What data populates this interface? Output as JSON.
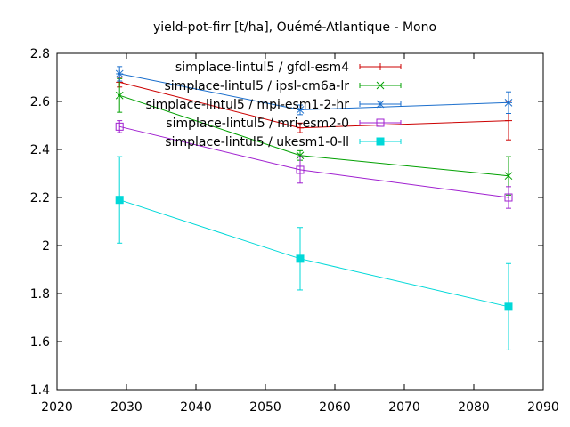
{
  "chart_data": {
    "type": "line",
    "title": "yield-pot-firr [t/ha], Ouémé-Atlantique - Mono",
    "xlabel": "",
    "ylabel": "",
    "xlim": [
      2020,
      2090
    ],
    "ylim": [
      1.4,
      2.8
    ],
    "xticks": [
      2020,
      2030,
      2040,
      2050,
      2060,
      2070,
      2080,
      2090
    ],
    "yticks": [
      1.4,
      1.6,
      1.8,
      2.0,
      2.2,
      2.4,
      2.6,
      2.8
    ],
    "xtick_labels": [
      "2020",
      "2030",
      "2040",
      "2050",
      "2060",
      "2070",
      "2080",
      "2090"
    ],
    "ytick_labels": [
      "1.4",
      "1.6",
      "1.8",
      "2",
      "2.2",
      "2.4",
      "2.6",
      "2.8"
    ],
    "grid": false,
    "legend_position": "top-right",
    "x": [
      2029,
      2055,
      2085
    ],
    "series": [
      {
        "name": "simplace-lintul5 / gfdl-esm4",
        "color": "#cc0000",
        "marker": "plus",
        "values": [
          2.68,
          2.49,
          2.52
        ],
        "errors": [
          0.02,
          0.02,
          0.08
        ]
      },
      {
        "name": "simplace-lintul5 / ipsl-cm6a-lr",
        "color": "#00a000",
        "marker": "cross",
        "values": [
          2.625,
          2.375,
          2.29
        ],
        "errors": [
          0.07,
          0.02,
          0.08
        ]
      },
      {
        "name": "simplace-lintul5 / mpi-esm1-2-hr",
        "color": "#1a6ecc",
        "marker": "star",
        "values": [
          2.715,
          2.565,
          2.595
        ],
        "errors": [
          0.03,
          0.02,
          0.045
        ]
      },
      {
        "name": "simplace-lintul5 / mri-esm2-0",
        "color": "#a020d0",
        "marker": "square",
        "values": [
          2.495,
          2.315,
          2.2
        ],
        "errors": [
          0.025,
          0.055,
          0.045
        ]
      },
      {
        "name": "simplace-lintul5 / ukesm1-0-ll",
        "color": "#00d8d8",
        "marker": "filled-square",
        "values": [
          2.19,
          1.945,
          1.745
        ],
        "errors": [
          0.18,
          0.13,
          0.18
        ]
      }
    ]
  }
}
